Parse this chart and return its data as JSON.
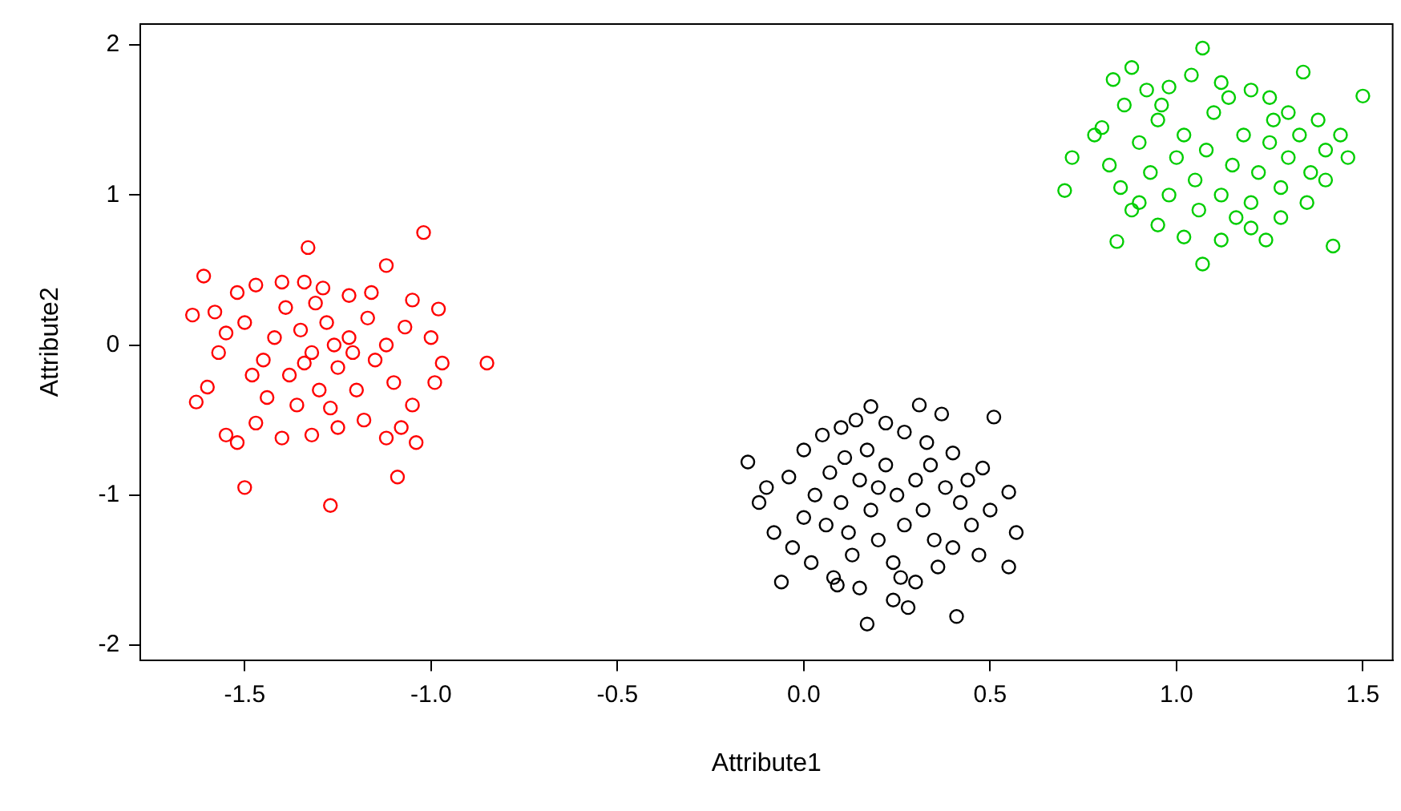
{
  "chart_data": {
    "type": "scatter",
    "xlabel": "Attribute1",
    "ylabel": "Attribute2",
    "xlim": [
      -1.78,
      1.58
    ],
    "ylim": [
      -2.1,
      2.14
    ],
    "xticks": [
      -1.5,
      {
        "value": -1,
        "label": "-1.0"
      },
      -0.5,
      {
        "value": 0,
        "label": "0.0"
      },
      0.5,
      {
        "value": 1,
        "label": "1.0"
      },
      1.5
    ],
    "yticks": [
      -2,
      -1,
      0,
      1,
      2
    ],
    "grid": false,
    "legend": false,
    "marker": "circle",
    "series": [
      {
        "color": "#ff0000",
        "x": [
          -1.02,
          -1.33,
          -0.85,
          -1.27,
          -1.09,
          -1.5,
          -1.61,
          -1.63,
          -1.64,
          -1.58,
          -1.52,
          -1.47,
          -1.4,
          -1.34,
          -1.29,
          -1.22,
          -1.12,
          -1.05,
          -0.98,
          -1.0,
          -0.97,
          -0.99,
          -1.05,
          -1.08,
          -1.12,
          -1.18,
          -1.25,
          -1.32,
          -1.4,
          -1.47,
          -1.55,
          -1.6,
          -1.57,
          -1.55,
          -1.5,
          -1.45,
          -1.42,
          -1.38,
          -1.35,
          -1.32,
          -1.3,
          -1.28,
          -1.25,
          -1.22,
          -1.2,
          -1.17,
          -1.15,
          -1.12,
          -1.1,
          -1.07,
          -1.36,
          -1.44,
          -1.27,
          -1.16,
          -1.39,
          -1.48,
          -1.31,
          -1.21,
          -1.34,
          -1.26,
          -1.04,
          -1.52
        ],
        "values": [
          0.75,
          0.65,
          -0.12,
          -1.07,
          -0.88,
          -0.95,
          0.46,
          -0.38,
          0.2,
          0.22,
          0.35,
          0.4,
          0.42,
          0.42,
          0.38,
          0.33,
          0.53,
          0.3,
          0.24,
          0.05,
          -0.12,
          -0.25,
          -0.4,
          -0.55,
          -0.62,
          -0.5,
          -0.55,
          -0.6,
          -0.62,
          -0.52,
          -0.6,
          -0.28,
          -0.05,
          0.08,
          0.15,
          -0.1,
          0.05,
          -0.2,
          0.1,
          -0.05,
          -0.3,
          0.15,
          -0.15,
          0.05,
          -0.3,
          0.18,
          -0.1,
          0.0,
          -0.25,
          0.12,
          -0.4,
          -0.35,
          -0.42,
          0.35,
          0.25,
          -0.2,
          0.28,
          -0.05,
          -0.12,
          0.0,
          -0.65,
          -0.65
        ]
      },
      {
        "color": "#000000",
        "x": [
          -0.15,
          0.37,
          0.31,
          0.18,
          0.51,
          0.57,
          0.55,
          0.17,
          0.41,
          -0.06,
          -0.12,
          -0.08,
          -0.04,
          -0.1,
          0.0,
          0.05,
          0.1,
          0.14,
          0.22,
          0.27,
          0.33,
          0.4,
          0.48,
          0.55,
          0.5,
          0.45,
          0.4,
          0.36,
          0.3,
          0.24,
          0.15,
          0.08,
          0.02,
          -0.03,
          0.0,
          0.03,
          0.07,
          0.1,
          0.12,
          0.15,
          0.18,
          0.2,
          0.22,
          0.25,
          0.27,
          0.3,
          0.32,
          0.35,
          0.38,
          0.42,
          0.17,
          0.13,
          0.24,
          0.28,
          0.06,
          0.44,
          0.2,
          0.11,
          0.34,
          0.09,
          0.47,
          0.26
        ],
        "values": [
          -0.78,
          -0.46,
          -0.4,
          -0.41,
          -0.48,
          -1.25,
          -1.48,
          -1.86,
          -1.81,
          -1.58,
          -1.05,
          -1.25,
          -0.88,
          -0.95,
          -0.7,
          -0.6,
          -0.55,
          -0.5,
          -0.52,
          -0.58,
          -0.65,
          -0.72,
          -0.82,
          -0.98,
          -1.1,
          -1.2,
          -1.35,
          -1.48,
          -1.58,
          -1.7,
          -1.62,
          -1.55,
          -1.45,
          -1.35,
          -1.15,
          -1.0,
          -0.85,
          -1.05,
          -1.25,
          -0.9,
          -1.1,
          -1.3,
          -0.8,
          -1.0,
          -1.2,
          -0.9,
          -1.1,
          -1.3,
          -0.95,
          -1.05,
          -0.7,
          -1.4,
          -1.45,
          -1.75,
          -1.2,
          -0.9,
          -0.95,
          -0.75,
          -0.8,
          -1.6,
          -1.4,
          -1.55
        ]
      },
      {
        "color": "#00cd00",
        "x": [
          0.7,
          1.07,
          1.5,
          1.07,
          1.42,
          0.84,
          0.72,
          1.34,
          0.83,
          0.88,
          0.78,
          0.8,
          0.86,
          0.92,
          0.98,
          1.04,
          1.12,
          1.2,
          1.25,
          1.3,
          1.38,
          1.44,
          1.46,
          1.4,
          1.35,
          1.28,
          1.2,
          1.12,
          1.02,
          0.95,
          0.88,
          0.85,
          0.82,
          0.9,
          0.95,
          1.0,
          1.02,
          1.05,
          1.08,
          1.1,
          1.12,
          1.15,
          1.18,
          1.2,
          1.22,
          1.25,
          1.28,
          1.3,
          1.33,
          1.36,
          0.98,
          0.93,
          1.06,
          1.16,
          1.26,
          0.96,
          1.14,
          1.4,
          0.9,
          1.24
        ],
        "values": [
          1.03,
          1.98,
          1.66,
          0.54,
          0.66,
          0.69,
          1.25,
          1.82,
          1.77,
          1.85,
          1.4,
          1.45,
          1.6,
          1.7,
          1.72,
          1.8,
          1.75,
          1.7,
          1.65,
          1.55,
          1.5,
          1.4,
          1.25,
          1.1,
          0.95,
          0.85,
          0.78,
          0.7,
          0.72,
          0.8,
          0.9,
          1.05,
          1.2,
          1.35,
          1.5,
          1.25,
          1.4,
          1.1,
          1.3,
          1.55,
          1.0,
          1.2,
          1.4,
          0.95,
          1.15,
          1.35,
          1.05,
          1.25,
          1.4,
          1.15,
          1.0,
          1.15,
          0.9,
          0.85,
          1.5,
          1.6,
          1.65,
          1.3,
          0.95,
          0.7
        ]
      }
    ]
  }
}
